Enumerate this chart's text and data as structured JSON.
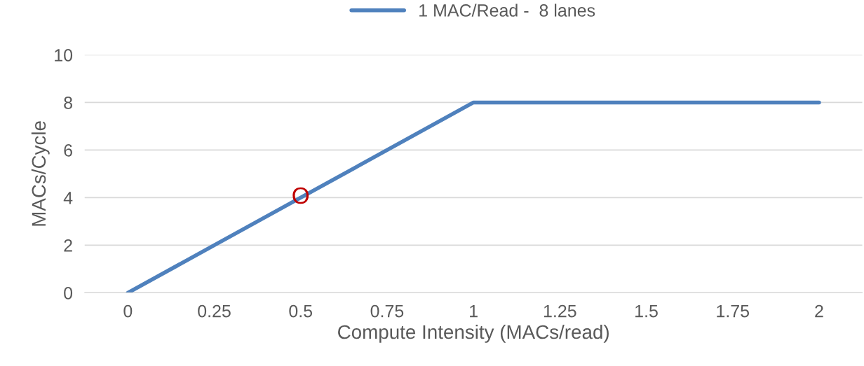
{
  "chart_data": {
    "type": "line",
    "xlabel": "Compute Intensity (MACs/read)",
    "ylabel": "MACs/Cycle",
    "categories": [
      "0",
      "0.25",
      "0.5",
      "0.75",
      "1",
      "1.25",
      "1.5",
      "1.75",
      "2"
    ],
    "series": [
      {
        "name": "1 MAC/Read -  8 lanes",
        "color": "#4f81bd",
        "values": [
          0,
          2,
          4,
          6,
          8,
          8,
          8,
          8,
          8
        ]
      }
    ],
    "annotations": [
      {
        "text": "O",
        "x": "0.5",
        "y": 4
      }
    ],
    "ylim": [
      0,
      10
    ],
    "yticks": [
      0,
      2,
      4,
      6,
      8,
      10
    ],
    "grid": "y",
    "legend": "top",
    "marker": "none",
    "line_style": "solid"
  }
}
